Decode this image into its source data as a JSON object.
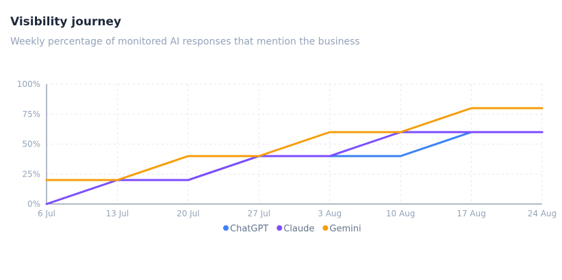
{
  "header": {
    "title": "Visibility journey",
    "subtitle": "Weekly percentage of monitored AI responses that mention the business"
  },
  "chart_data": {
    "type": "line",
    "x": [
      "6 Jul",
      "13 Jul",
      "20 Jul",
      "27 Jul",
      "3 Aug",
      "10 Aug",
      "17 Aug",
      "24 Aug"
    ],
    "ylim": [
      0,
      100
    ],
    "yticks": [
      0,
      25,
      50,
      75,
      100
    ],
    "ytick_labels": [
      "0%",
      "25%",
      "50%",
      "75%",
      "100%"
    ],
    "grid": true,
    "legend": "bottom-center",
    "series": [
      {
        "name": "ChatGPT",
        "color": "#3b82f6",
        "values": [
          20,
          20,
          20,
          40,
          40,
          40,
          60,
          60
        ]
      },
      {
        "name": "Claude",
        "color": "#7c4dff",
        "values": [
          0,
          20,
          20,
          40,
          40,
          60,
          60,
          60
        ]
      },
      {
        "name": "Gemini",
        "color": "#f59e0b",
        "values": [
          20,
          20,
          40,
          40,
          60,
          60,
          80,
          80
        ]
      }
    ]
  }
}
